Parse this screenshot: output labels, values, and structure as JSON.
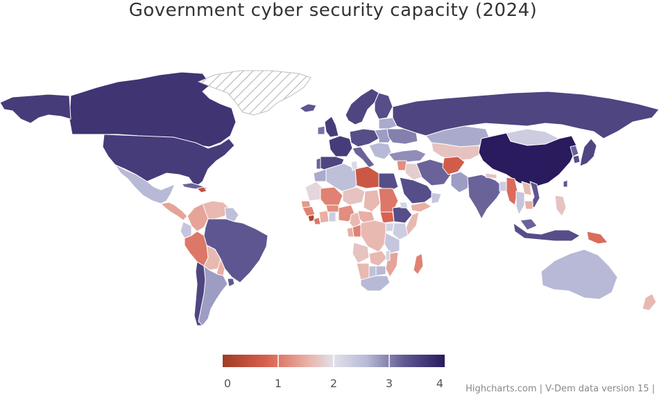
{
  "title": "Government cyber security capacity (2024)",
  "credits": "Highcharts.com | V-Dem data version 15 |",
  "colors": {
    "scale": [
      "#a13b25",
      "#d9614f",
      "#e9b1a6",
      "#e1e1ea",
      "#b7b9d6",
      "#5f5891",
      "#2a1a5e"
    ],
    "land_border": "#ffffff",
    "no_data_hatch": "#999999"
  },
  "legend": {
    "min": 0,
    "max": 4,
    "labels": [
      "0",
      "1",
      "2",
      "3",
      "4"
    ]
  },
  "chart_data": {
    "type": "choropleth",
    "title": "Government cyber security capacity (2024)",
    "range": [
      0,
      4
    ],
    "no_data": [
      "Greenland"
    ],
    "regions": [
      {
        "name": "Canada",
        "value": 3.7
      },
      {
        "name": "United States",
        "value": 3.6
      },
      {
        "name": "Alaska",
        "value": 3.6
      },
      {
        "name": "Mexico",
        "value": 2.6
      },
      {
        "name": "Central America",
        "value": 1.4
      },
      {
        "name": "Cuba",
        "value": 3.2
      },
      {
        "name": "Haiti",
        "value": 0.5
      },
      {
        "name": "Colombia",
        "value": 1.4
      },
      {
        "name": "Venezuela",
        "value": 1.6
      },
      {
        "name": "Guyana",
        "value": 2.5
      },
      {
        "name": "Ecuador",
        "value": 2.4
      },
      {
        "name": "Peru",
        "value": 1.0
      },
      {
        "name": "Brazil",
        "value": 3.3
      },
      {
        "name": "Bolivia",
        "value": 1.6
      },
      {
        "name": "Paraguay",
        "value": 1.5
      },
      {
        "name": "Argentina",
        "value": 2.8
      },
      {
        "name": "Uruguay",
        "value": 3.3
      },
      {
        "name": "Chile",
        "value": 3.5
      },
      {
        "name": "Iceland",
        "value": 3.3
      },
      {
        "name": "Scandinavia",
        "value": 3.5
      },
      {
        "name": "Finland",
        "value": 3.4
      },
      {
        "name": "United Kingdom",
        "value": 3.6
      },
      {
        "name": "Ireland",
        "value": 3.1
      },
      {
        "name": "France",
        "value": 3.6
      },
      {
        "name": "Spain",
        "value": 3.5
      },
      {
        "name": "Portugal",
        "value": 3.2
      },
      {
        "name": "Central Europe",
        "value": 3.4
      },
      {
        "name": "Italy",
        "value": 3.2
      },
      {
        "name": "Eastern Europe",
        "value": 2.8
      },
      {
        "name": "Balkans",
        "value": 2.6
      },
      {
        "name": "Ukraine",
        "value": 3.0
      },
      {
        "name": "Belarus",
        "value": 2.7
      },
      {
        "name": "Russia",
        "value": 3.5
      },
      {
        "name": "Turkey",
        "value": 2.9
      },
      {
        "name": "Kazakhstan",
        "value": 2.7
      },
      {
        "name": "Central Asia",
        "value": 1.7
      },
      {
        "name": "Mongolia",
        "value": 2.3
      },
      {
        "name": "China",
        "value": 4.0
      },
      {
        "name": "North Korea",
        "value": 3.2
      },
      {
        "name": "South Korea",
        "value": 3.4
      },
      {
        "name": "Japan",
        "value": 3.5
      },
      {
        "name": "Taiwan",
        "value": 3.3
      },
      {
        "name": "Iran",
        "value": 3.2
      },
      {
        "name": "Iraq",
        "value": 1.8
      },
      {
        "name": "Syria",
        "value": 1.2
      },
      {
        "name": "Saudi Arabia",
        "value": 3.4
      },
      {
        "name": "Yemen",
        "value": 1.5
      },
      {
        "name": "Oman",
        "value": 2.4
      },
      {
        "name": "Afghanistan",
        "value": 0.7
      },
      {
        "name": "Pakistan",
        "value": 2.8
      },
      {
        "name": "India",
        "value": 3.2
      },
      {
        "name": "Nepal",
        "value": 1.7
      },
      {
        "name": "Bangladesh",
        "value": 2.3
      },
      {
        "name": "Myanmar",
        "value": 0.9
      },
      {
        "name": "Thailand",
        "value": 2.4
      },
      {
        "name": "Laos",
        "value": 1.6
      },
      {
        "name": "Vietnam",
        "value": 3.3
      },
      {
        "name": "Cambodia",
        "value": 1.5
      },
      {
        "name": "Malaysia",
        "value": 3.2
      },
      {
        "name": "Indonesia",
        "value": 3.4
      },
      {
        "name": "Philippines",
        "value": 1.7
      },
      {
        "name": "Papua New Guinea",
        "value": 0.9
      },
      {
        "name": "Australia",
        "value": 2.6
      },
      {
        "name": "New Zealand",
        "value": 1.6
      },
      {
        "name": "Morocco",
        "value": 2.7
      },
      {
        "name": "Algeria",
        "value": 2.5
      },
      {
        "name": "Tunisia",
        "value": 2.1
      },
      {
        "name": "Libya",
        "value": 0.6
      },
      {
        "name": "Egypt",
        "value": 3.4
      },
      {
        "name": "Mauritania",
        "value": 1.9
      },
      {
        "name": "Mali",
        "value": 1.1
      },
      {
        "name": "Niger",
        "value": 1.7
      },
      {
        "name": "Chad",
        "value": 1.6
      },
      {
        "name": "Sudan",
        "value": 1.0
      },
      {
        "name": "Senegal",
        "value": 1.3
      },
      {
        "name": "Guinea",
        "value": 1.1
      },
      {
        "name": "Sierra Leone",
        "value": 0.2
      },
      {
        "name": "Liberia",
        "value": 1.0
      },
      {
        "name": "Cote d'Ivoire",
        "value": 1.5
      },
      {
        "name": "Burkina Faso",
        "value": 1.2
      },
      {
        "name": "Ghana",
        "value": 2.3
      },
      {
        "name": "Nigeria",
        "value": 1.2
      },
      {
        "name": "Cameroon",
        "value": 1.6
      },
      {
        "name": "Central African Republic",
        "value": 1.5
      },
      {
        "name": "South Sudan",
        "value": 0.8
      },
      {
        "name": "Ethiopia",
        "value": 3.4
      },
      {
        "name": "Eritrea",
        "value": 2.2
      },
      {
        "name": "Somalia",
        "value": 1.6
      },
      {
        "name": "Kenya",
        "value": 2.3
      },
      {
        "name": "Uganda",
        "value": 2.2
      },
      {
        "name": "DR Congo",
        "value": 1.6
      },
      {
        "name": "Congo",
        "value": 1.1
      },
      {
        "name": "Gabon",
        "value": 1.5
      },
      {
        "name": "Tanzania",
        "value": 2.4
      },
      {
        "name": "Angola",
        "value": 1.7
      },
      {
        "name": "Zambia",
        "value": 1.6
      },
      {
        "name": "Mozambique",
        "value": 1.4
      },
      {
        "name": "Malawi",
        "value": 2.2
      },
      {
        "name": "Zimbabwe",
        "value": 2.6
      },
      {
        "name": "Namibia",
        "value": 1.6
      },
      {
        "name": "Botswana",
        "value": 2.5
      },
      {
        "name": "South Africa",
        "value": 2.6
      },
      {
        "name": "Madagascar",
        "value": 1.1
      }
    ]
  }
}
